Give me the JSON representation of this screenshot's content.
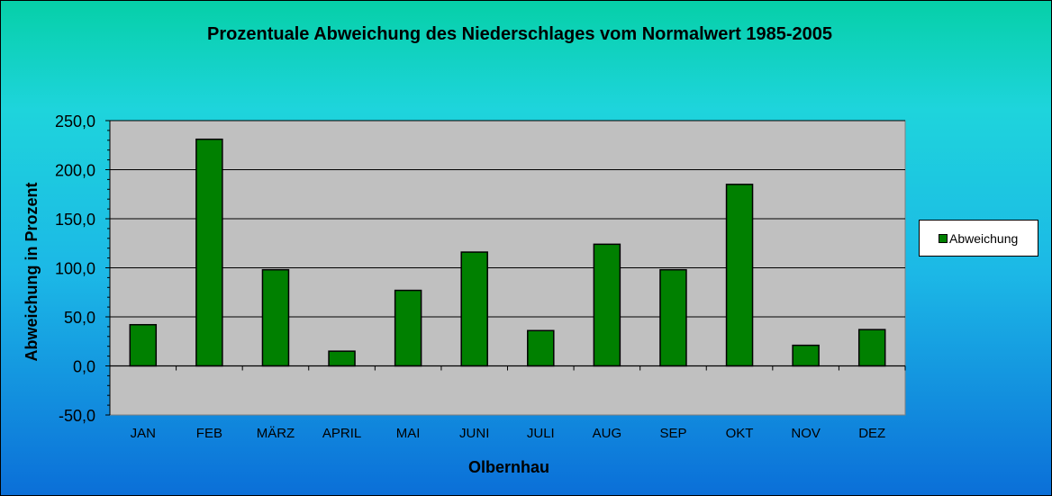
{
  "chart_data": {
    "type": "bar",
    "title": "Prozentuale  Abweichung  des  Niederschlages  vom  Normalwert  1985-2005",
    "xlabel": "Olbernhau",
    "ylabel": "Abweichung in Prozent",
    "categories": [
      "JAN",
      "FEB",
      "MÄRZ",
      "APRIL",
      "MAI",
      "JUNI",
      "JULI",
      "AUG",
      "SEP",
      "OKT",
      "NOV",
      "DEZ"
    ],
    "series": [
      {
        "name": "Abweichung",
        "values": [
          42.0,
          231.0,
          98.0,
          15.0,
          77.0,
          116.0,
          36.0,
          124.0,
          98.0,
          185.0,
          21.0,
          37.0
        ]
      }
    ],
    "ylim": [
      -50,
      250
    ],
    "yticks": [
      "-50,0",
      "0,0",
      "50,0",
      "100,0",
      "150,0",
      "200,0",
      "250,0"
    ],
    "ytick_values": [
      -50,
      0,
      50,
      100,
      150,
      200,
      250
    ],
    "grid": true,
    "legend": "right",
    "colors": {
      "bar": "#008000",
      "plot_bg": "#c0c0c0",
      "grid": "#000000"
    }
  }
}
